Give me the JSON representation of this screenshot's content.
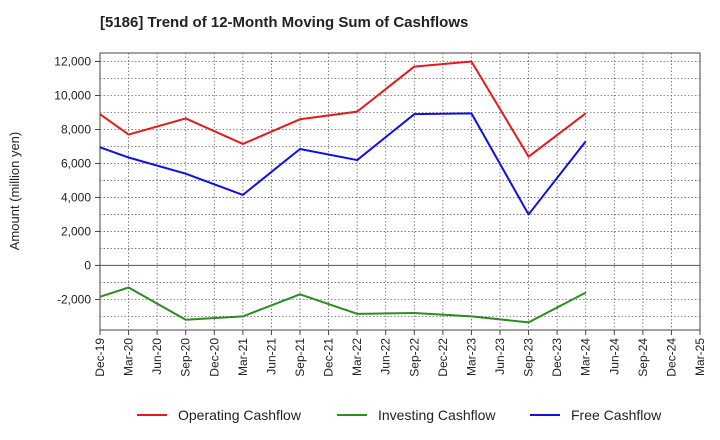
{
  "chart_data": {
    "type": "line",
    "title": "[5186]  Trend of 12-Month Moving Sum of Cashflows",
    "xlabel": "",
    "ylabel": "Amount (million yen)",
    "categories": [
      "Dec-19",
      "Mar-20",
      "Jun-20",
      "Sep-20",
      "Dec-20",
      "Mar-21",
      "Jun-21",
      "Sep-21",
      "Dec-21",
      "Mar-22",
      "Jun-22",
      "Sep-22",
      "Dec-22",
      "Mar-23",
      "Jun-23",
      "Sep-23",
      "Dec-23",
      "Mar-24",
      "Jun-24",
      "Sep-24",
      "Dec-24",
      "Mar-25"
    ],
    "y_ticks": [
      -2000,
      0,
      2000,
      4000,
      6000,
      8000,
      10000,
      12000
    ],
    "y_tick_labels": [
      "-2,000",
      "0",
      "2,000",
      "4,000",
      "6,000",
      "8,000",
      "10,000",
      "12,000"
    ],
    "ylim": [
      -3800,
      12500
    ],
    "grid": true,
    "legend_position": "bottom",
    "series": [
      {
        "name": "Operating Cashflow",
        "color": "#e41a1c",
        "values": [
          8900,
          7700,
          null,
          8650,
          null,
          7150,
          null,
          8600,
          null,
          9050,
          null,
          11700,
          null,
          12000,
          null,
          6400,
          null,
          8950,
          null,
          null,
          null,
          null
        ]
      },
      {
        "name": "Investing Cashflow",
        "color": "#2e8b22",
        "values": [
          -1850,
          -1300,
          null,
          -3200,
          null,
          -3000,
          null,
          -1700,
          null,
          -2850,
          null,
          -2800,
          null,
          -3000,
          null,
          -3350,
          null,
          -1600,
          null,
          null,
          null,
          null
        ]
      },
      {
        "name": "Free Cashflow",
        "color": "#1010e0",
        "values": [
          6950,
          6350,
          null,
          5400,
          null,
          4150,
          null,
          6850,
          null,
          6200,
          null,
          8900,
          null,
          8950,
          null,
          3000,
          null,
          7300,
          null,
          null,
          null,
          null
        ]
      }
    ]
  }
}
